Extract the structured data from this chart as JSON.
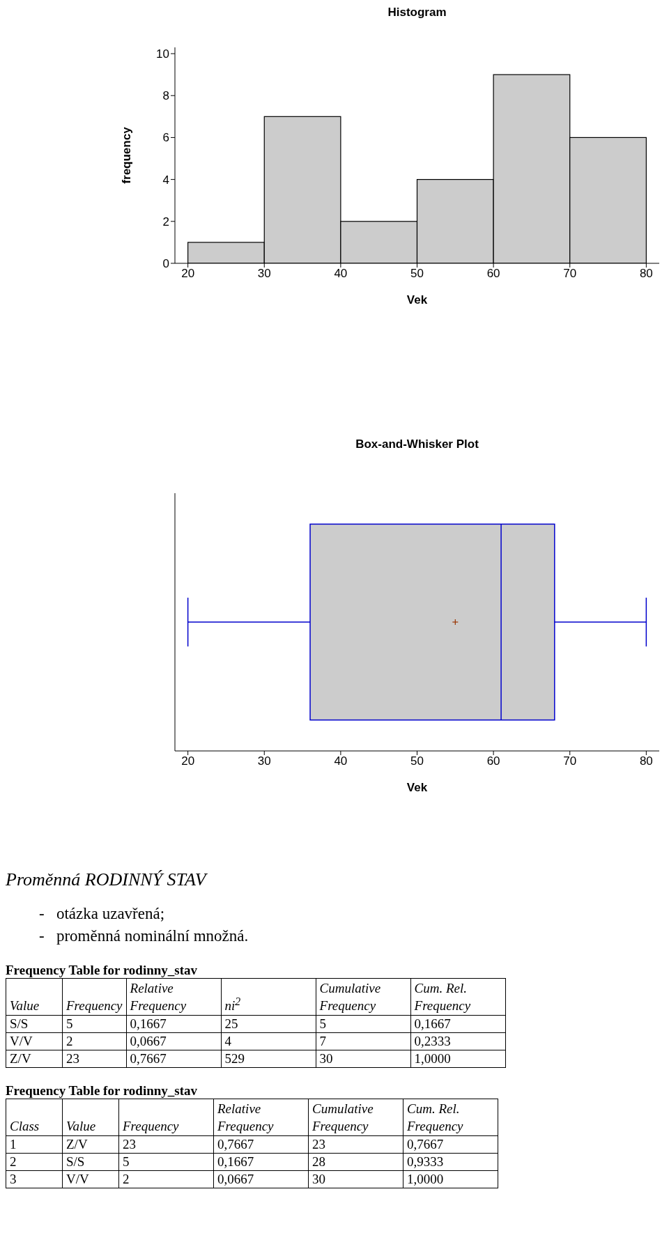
{
  "chart_data": [
    {
      "type": "histogram",
      "title": "Histogram",
      "xlabel": "Vek",
      "ylabel": "frequency",
      "bins": [
        20,
        30,
        40,
        50,
        60,
        70,
        80
      ],
      "values": [
        1,
        7,
        2,
        4,
        9,
        6
      ],
      "color": "#cccccc",
      "xlim": [
        18.3,
        81.7
      ],
      "xticks": [
        20,
        30,
        40,
        50,
        60,
        70,
        80
      ],
      "ylim": [
        0,
        10.3
      ],
      "yticks": [
        0,
        2,
        4,
        6,
        8,
        10
      ]
    },
    {
      "type": "box",
      "title": "Box-and-Whisker Plot",
      "xlabel": "Vek",
      "orientation": "horizontal",
      "categories": [
        null
      ],
      "color": "#cccccc",
      "boxes": [
        {
          "low": 20,
          "q1": 36,
          "median": 61,
          "q3": 68,
          "high": 80,
          "mean": 55
        }
      ],
      "xlim": [
        18.3,
        81.7
      ],
      "xticks": [
        20,
        30,
        40,
        50,
        60,
        70,
        80
      ],
      "tick_labels": "x"
    },
    {
      "type": "other",
      "title": "Proměnná RODINNÝ STAV",
      "annotations": [
        "-   otázka uzavřená;",
        "-   proměnná nominální množná."
      ]
    },
    {
      "type": "other",
      "title": "Frequency Table for rodinny_stav",
      "categories": [
        "Value",
        "Frequency",
        "Relative Frequency",
        "ni$^{2}$",
        "Cumulative Frequency",
        "Cum. Rel. Frequency"
      ],
      "cell_labels": [
        [
          "S/S",
          "5",
          "0,1667",
          "25",
          "5",
          "0,1667"
        ],
        [
          "V/V",
          "2",
          "0,0667",
          "4",
          "7",
          "0,2333"
        ],
        [
          "Z/V",
          "23",
          "0,7667",
          "529",
          "30",
          "1,0000"
        ]
      ]
    },
    {
      "type": "other",
      "title": "Frequency Table for rodinny_stav",
      "categories": [
        "Class",
        "Value",
        "Frequency",
        "Relative Frequency",
        "Cumulative Frequency",
        "Cum. Rel. Frequency"
      ],
      "cell_labels": [
        [
          "1",
          "Z/V",
          "23",
          "0,7667",
          "23",
          "0,7667"
        ],
        [
          "2",
          "S/S",
          "5",
          "0,1667",
          "28",
          "0,9333"
        ],
        [
          "3",
          "V/V",
          "2",
          "0,0667",
          "30",
          "1,0000"
        ]
      ]
    }
  ]
}
